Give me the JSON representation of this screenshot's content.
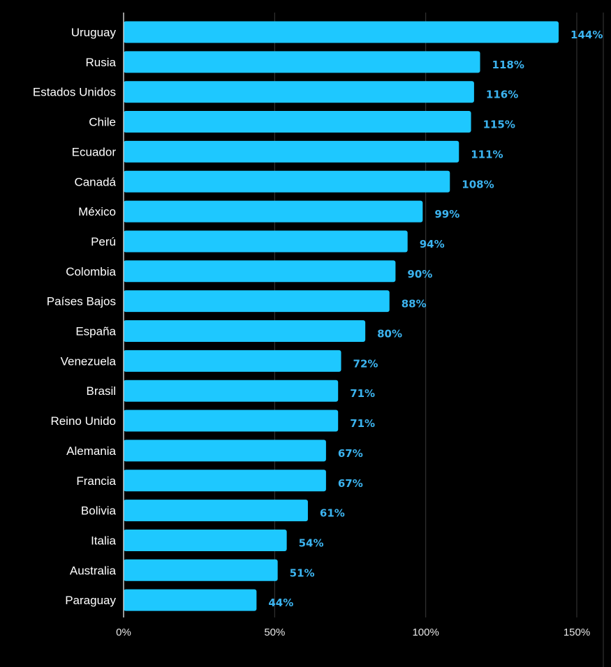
{
  "chart_data": {
    "type": "bar",
    "orientation": "horizontal",
    "title": "",
    "xlabel": "",
    "ylabel": "",
    "categories": [
      "Uruguay",
      "Rusia",
      "Estados Unidos",
      "Chile",
      "Ecuador",
      "Canadá",
      "México",
      "Perú",
      "Colombia",
      "Países Bajos",
      "España",
      "Venezuela",
      "Brasil",
      "Reino Unido",
      "Alemania",
      "Francia",
      "Bolivia",
      "Italia",
      "Australia",
      "Paraguay"
    ],
    "values": [
      144,
      118,
      116,
      115,
      111,
      108,
      99,
      94,
      90,
      88,
      80,
      72,
      71,
      71,
      67,
      67,
      61,
      54,
      51,
      44
    ],
    "value_labels": [
      "144%",
      "118%",
      "116%",
      "115%",
      "111%",
      "108%",
      "99%",
      "94%",
      "90%",
      "88%",
      "80%",
      "72%",
      "71%",
      "71%",
      "67%",
      "67%",
      "61%",
      "54%",
      "51%",
      "44%"
    ],
    "xlim": [
      0,
      150
    ],
    "x_ticks": [
      0,
      50,
      100,
      150
    ],
    "x_tick_labels": [
      "0%",
      "50%",
      "100%",
      "150%"
    ],
    "grid": "vertical",
    "legend": "none",
    "colors": {
      "background": "#000000",
      "bar": "#1ec8ff",
      "value_label": "#3cb4f0",
      "category_label": "#ffffff",
      "tick_label": "#e6e6e6",
      "grid": "#3a3a3a",
      "axis": "#cccccc"
    }
  }
}
